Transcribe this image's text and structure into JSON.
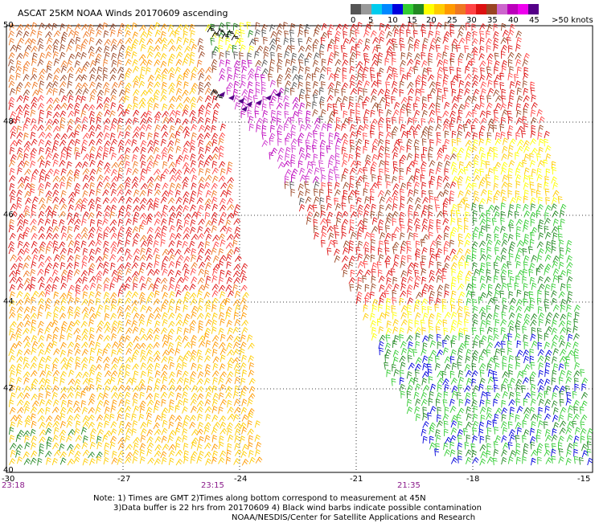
{
  "title": "ASCAT 25KM NOAA Winds 20170609 ascending",
  "legend": {
    "labels": [
      "0",
      "5",
      "10",
      "15",
      "20",
      "25",
      "30",
      "35",
      "40",
      "45",
      ">50 knots"
    ],
    "colors": [
      "#555555",
      "#999999",
      "#00ccee",
      "#0088ff",
      "#0000dd",
      "#33cc33",
      "#228822",
      "#ffff00",
      "#ffcc00",
      "#ff9900",
      "#ee7722",
      "#ff4444",
      "#dd1111",
      "#994422",
      "#cc66cc",
      "#bb00bb",
      "#ee00ee",
      "#550088"
    ]
  },
  "axes": {
    "lat_labels": [
      "50",
      "48",
      "46",
      "44",
      "42",
      "40"
    ],
    "lon_labels": [
      "-30",
      "-27",
      "-24",
      "-21",
      "-18",
      "-15"
    ]
  },
  "times": [
    "23:18",
    "23:15",
    "21:35"
  ],
  "notes": [
    "Note: 1) Times are GMT 2)Times along bottom correspond to measurement at 45N",
    "3)Data buffer is 22 hrs from 20170609 4) Black wind barbs indicate possible contamination",
    "NOAA/NESDIS/Center for Satellite Applications and Research"
  ]
}
